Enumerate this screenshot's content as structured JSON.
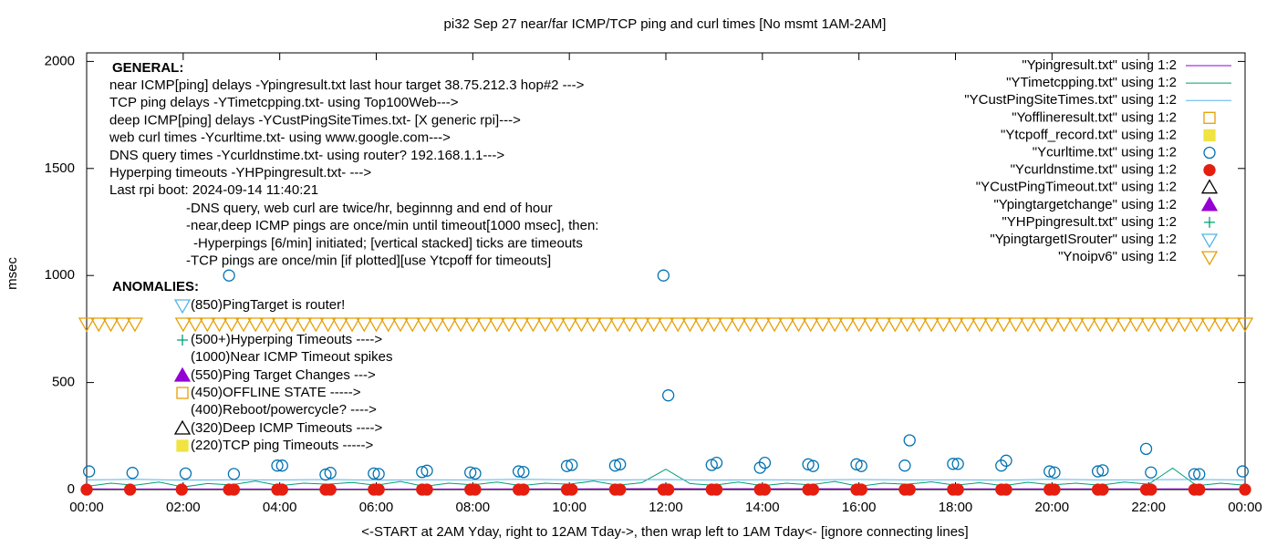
{
  "chart_data": {
    "type": "scatter",
    "title": "pi32 Sep 27  near/far ICMP/TCP ping and curl times [No msmt 1AM-2AM]",
    "x_label": "<-START at 2AM Yday, right to 12AM Tday->, then wrap left to 1AM Tday<- [ignore connecting lines]",
    "y_label": "msec",
    "xlim": [
      0,
      24
    ],
    "ylim": [
      0,
      2040
    ],
    "xticks": [
      {
        "value": 0,
        "label": "00:00"
      },
      {
        "value": 2,
        "label": "02:00"
      },
      {
        "value": 4,
        "label": "04:00"
      },
      {
        "value": 6,
        "label": "06:00"
      },
      {
        "value": 8,
        "label": "08:00"
      },
      {
        "value": 10,
        "label": "10:00"
      },
      {
        "value": 12,
        "label": "12:00"
      },
      {
        "value": 14,
        "label": "14:00"
      },
      {
        "value": 16,
        "label": "16:00"
      },
      {
        "value": 18,
        "label": "18:00"
      },
      {
        "value": 20,
        "label": "20:00"
      },
      {
        "value": 22,
        "label": "22:00"
      },
      {
        "value": 24,
        "label": "00:00"
      }
    ],
    "yticks": [
      0,
      500,
      1000,
      1500,
      2000
    ],
    "grid": false,
    "legend": "top-right",
    "general_heading": "GENERAL:",
    "general_lines": [
      "near ICMP[ping] delays -Ypingresult.txt last hour target 38.75.212.3 hop#2 --->",
      "TCP ping delays -YTimetcpping.txt- using Top100Web--->",
      "deep ICMP[ping] delays -YCustPingSiteTimes.txt- [X generic rpi]--->",
      "web curl times -Ycurltime.txt- using www.google.com--->",
      "DNS query times -Ycurldnstime.txt- using router? 192.168.1.1--->",
      "Hyperping timeouts -YHPpingresult.txt- --->",
      "Last rpi boot: 2024-09-14 11:40:21"
    ],
    "notes": [
      "-DNS query, web curl are twice/hr, beginnng and end of hour",
      "-near,deep ICMP pings are once/min until timeout[1000 msec], then:",
      "-Hyperpings [6/min] initiated; [vertical stacked] ticks are timeouts",
      "-TCP pings are once/min [if plotted][use Ytcpoff for timeouts]"
    ],
    "anomalies_heading": "ANOMALIES:",
    "anomalies_lines": [
      "(850)PingTarget is router!",
      "(500+)Hyperping Timeouts ---->",
      "(1000)Near ICMP Timeout spikes",
      "(550)Ping Target Changes --->",
      "(450)OFFLINE STATE ----->",
      "(400)Reboot/powercycle? ---->",
      "(320)Deep ICMP Timeouts ---->",
      "(220)TCP ping Timeouts ----->"
    ],
    "series": [
      {
        "name": "\"Ypingresult.txt\" using 1:2",
        "color": "#9400d3",
        "marker": "line",
        "x": [
          0,
          6,
          12,
          18,
          24
        ],
        "values": [
          3,
          2,
          4,
          3,
          3
        ]
      },
      {
        "name": "\"YTimetcpping.txt\" using 1:2",
        "color": "#009e73",
        "marker": "line",
        "x": [
          0,
          0.5,
          1,
          1.5,
          2,
          2.5,
          3,
          3.5,
          4,
          4.5,
          5,
          5.5,
          6,
          6.5,
          7,
          7.5,
          8,
          8.5,
          9,
          9.5,
          10,
          10.5,
          11,
          11.5,
          12,
          12.5,
          13,
          13.5,
          14,
          14.5,
          15,
          15.5,
          16,
          16.5,
          17,
          17.5,
          18,
          18.5,
          19,
          19.5,
          20,
          20.5,
          21,
          21.5,
          22,
          22.5,
          23,
          23.5,
          24
        ],
        "values": [
          15,
          30,
          20,
          35,
          12,
          28,
          22,
          40,
          18,
          30,
          25,
          33,
          20,
          38,
          15,
          30,
          22,
          35,
          18,
          30,
          25,
          40,
          20,
          32,
          95,
          28,
          20,
          35,
          18,
          30,
          22,
          38,
          15,
          30,
          25,
          36,
          20,
          32,
          18,
          34,
          22,
          30,
          20,
          35,
          25,
          100,
          18,
          30,
          20
        ]
      },
      {
        "name": "\"YCustPingSiteTimes.txt\" using 1:2",
        "color": "#56b4e9",
        "marker": "line",
        "x": [
          0,
          1,
          2,
          3,
          4,
          5,
          6,
          7,
          8,
          9,
          10,
          11,
          12,
          13,
          14,
          15,
          16,
          17,
          18,
          19,
          20,
          21,
          22,
          23,
          24
        ],
        "values": [
          45,
          48,
          44,
          46,
          45,
          47,
          44,
          46,
          45,
          48,
          46,
          45,
          47,
          44,
          46,
          45,
          47,
          45,
          46,
          44,
          48,
          45,
          46,
          47,
          45
        ]
      },
      {
        "name": "\"Yofflineresult.txt\" using 1:2",
        "color": "#e69f00",
        "marker": "square",
        "x": [],
        "values": []
      },
      {
        "name": "\"Ytcpoff_record.txt\" using 1:2",
        "color": "#f0e442",
        "marker": "filled-square",
        "x": [],
        "values": []
      },
      {
        "name": "\"Ycurltime.txt\" using 1:2",
        "color": "#0072b2",
        "marker": "circle",
        "x": [
          0.05,
          0.95,
          2.05,
          2.95,
          3.05,
          3.95,
          4.05,
          4.95,
          5.05,
          5.95,
          6.05,
          6.95,
          7.05,
          7.95,
          8.05,
          8.95,
          9.05,
          9.95,
          10.05,
          10.95,
          11.05,
          11.95,
          12.05,
          12.95,
          13.05,
          13.95,
          14.05,
          14.95,
          15.05,
          15.95,
          16.05,
          16.95,
          17.05,
          17.95,
          18.05,
          18.95,
          19.05,
          19.95,
          20.05,
          20.95,
          21.05,
          21.95,
          22.05,
          22.95,
          23.05,
          23.95
        ],
        "values": [
          85,
          78,
          75,
          1000,
          73,
          112,
          112,
          70,
          78,
          75,
          73,
          82,
          88,
          80,
          75,
          85,
          82,
          110,
          115,
          112,
          118,
          1000,
          440,
          115,
          125,
          102,
          125,
          118,
          110,
          118,
          110,
          112,
          230,
          120,
          120,
          112,
          135,
          85,
          80,
          85,
          90,
          190,
          80,
          72,
          72,
          85
        ]
      },
      {
        "name": "\"Ycurldnstime.txt\" using 1:2",
        "color": "#e51e10",
        "marker": "filled-circle",
        "x": [
          0,
          0.9,
          1.97,
          2.95,
          3.05,
          3.95,
          4.05,
          4.95,
          5.05,
          5.95,
          6.05,
          6.95,
          7.05,
          7.95,
          8.05,
          8.95,
          9.05,
          9.95,
          10.05,
          10.95,
          11.05,
          11.95,
          12.05,
          12.95,
          13.05,
          13.95,
          14.05,
          14.95,
          15.05,
          15.95,
          16.05,
          16.95,
          17.05,
          17.95,
          18.05,
          18.95,
          19.05,
          19.95,
          20.05,
          20.95,
          21.05,
          21.95,
          22.05,
          22.95,
          23.05,
          24
        ],
        "values": [
          0,
          0,
          0,
          0,
          0,
          0,
          0,
          0,
          0,
          0,
          0,
          0,
          0,
          0,
          0,
          0,
          0,
          0,
          0,
          0,
          0,
          0,
          0,
          0,
          0,
          0,
          0,
          0,
          0,
          0,
          0,
          0,
          0,
          0,
          0,
          0,
          0,
          0,
          0,
          0,
          0,
          0,
          0,
          0,
          0,
          0
        ]
      },
      {
        "name": "\"YCustPingTimeout.txt\" using 1:2",
        "color": "#000000",
        "marker": "triangle",
        "x": [],
        "values": []
      },
      {
        "name": "\"Ypingtargetchange\" using 1:2",
        "color": "#9400d3",
        "marker": "filled-triangle",
        "x": [],
        "values": []
      },
      {
        "name": "\"YHPpingresult.txt\" using 1:2",
        "color": "#009e73",
        "marker": "plus",
        "x": [],
        "values": []
      },
      {
        "name": "\"YpingtargetISrouter\" using 1:2",
        "color": "#56b4e9",
        "marker": "triangle-down",
        "x": [],
        "values": []
      },
      {
        "name": "\"Ynoipv6\" using 1:2",
        "color": "#e69f00",
        "marker": "triangle-down",
        "x": [
          0,
          0.25,
          0.5,
          0.75,
          1,
          2,
          2.25,
          2.5,
          2.75,
          3,
          3.25,
          3.5,
          3.75,
          4,
          4.25,
          4.5,
          4.75,
          5,
          5.25,
          5.5,
          5.75,
          6,
          6.25,
          6.5,
          6.75,
          7,
          7.25,
          7.5,
          7.75,
          8,
          8.25,
          8.5,
          8.75,
          9,
          9.25,
          9.5,
          9.75,
          10,
          10.25,
          10.5,
          10.75,
          11,
          11.25,
          11.5,
          11.75,
          12,
          12.25,
          12.5,
          12.75,
          13,
          13.25,
          13.5,
          13.75,
          14,
          14.25,
          14.5,
          14.75,
          15,
          15.25,
          15.5,
          15.75,
          16,
          16.25,
          16.5,
          16.75,
          17,
          17.25,
          17.5,
          17.75,
          18,
          18.25,
          18.5,
          18.75,
          19,
          19.25,
          19.5,
          19.75,
          20,
          20.25,
          20.5,
          20.75,
          21,
          21.25,
          21.5,
          21.75,
          22,
          22.25,
          22.5,
          22.75,
          23,
          23.25,
          23.5,
          23.75,
          24
        ],
        "values": [
          775,
          775,
          775,
          775,
          775,
          775,
          775,
          775,
          775,
          775,
          775,
          775,
          775,
          775,
          775,
          775,
          775,
          775,
          775,
          775,
          775,
          775,
          775,
          775,
          775,
          775,
          775,
          775,
          775,
          775,
          775,
          775,
          775,
          775,
          775,
          775,
          775,
          775,
          775,
          775,
          775,
          775,
          775,
          775,
          775,
          775,
          775,
          775,
          775,
          775,
          775,
          775,
          775,
          775,
          775,
          775,
          775,
          775,
          775,
          775,
          775,
          775,
          775,
          775,
          775,
          775,
          775,
          775,
          775,
          775,
          775,
          775,
          775,
          775,
          775,
          775,
          775,
          775,
          775,
          775,
          775,
          775,
          775,
          775,
          775,
          775,
          775,
          775,
          775,
          775,
          775,
          775,
          775,
          775
        ]
      }
    ]
  }
}
